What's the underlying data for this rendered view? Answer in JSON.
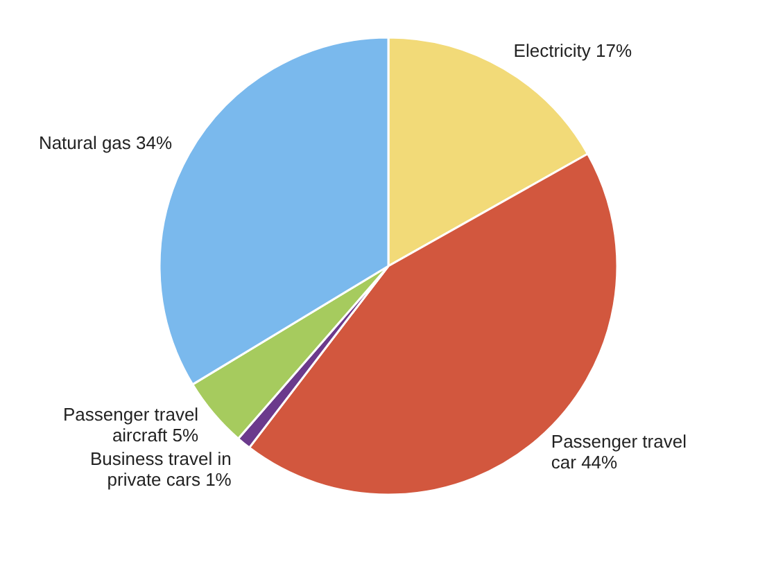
{
  "chart_data": {
    "type": "pie",
    "categories": [
      "Electricity",
      "Passenger travel car",
      "Business travel in private cars",
      "Passenger travel aircraft",
      "Natural gas"
    ],
    "values": [
      17,
      44,
      1,
      5,
      34
    ],
    "value_labels": [
      "17%",
      "44%",
      "1%",
      "5%",
      "34%"
    ],
    "colors": [
      "#f2da78",
      "#d2573e",
      "#6b3a8c",
      "#a6cb5e",
      "#7ab9ed"
    ]
  }
}
